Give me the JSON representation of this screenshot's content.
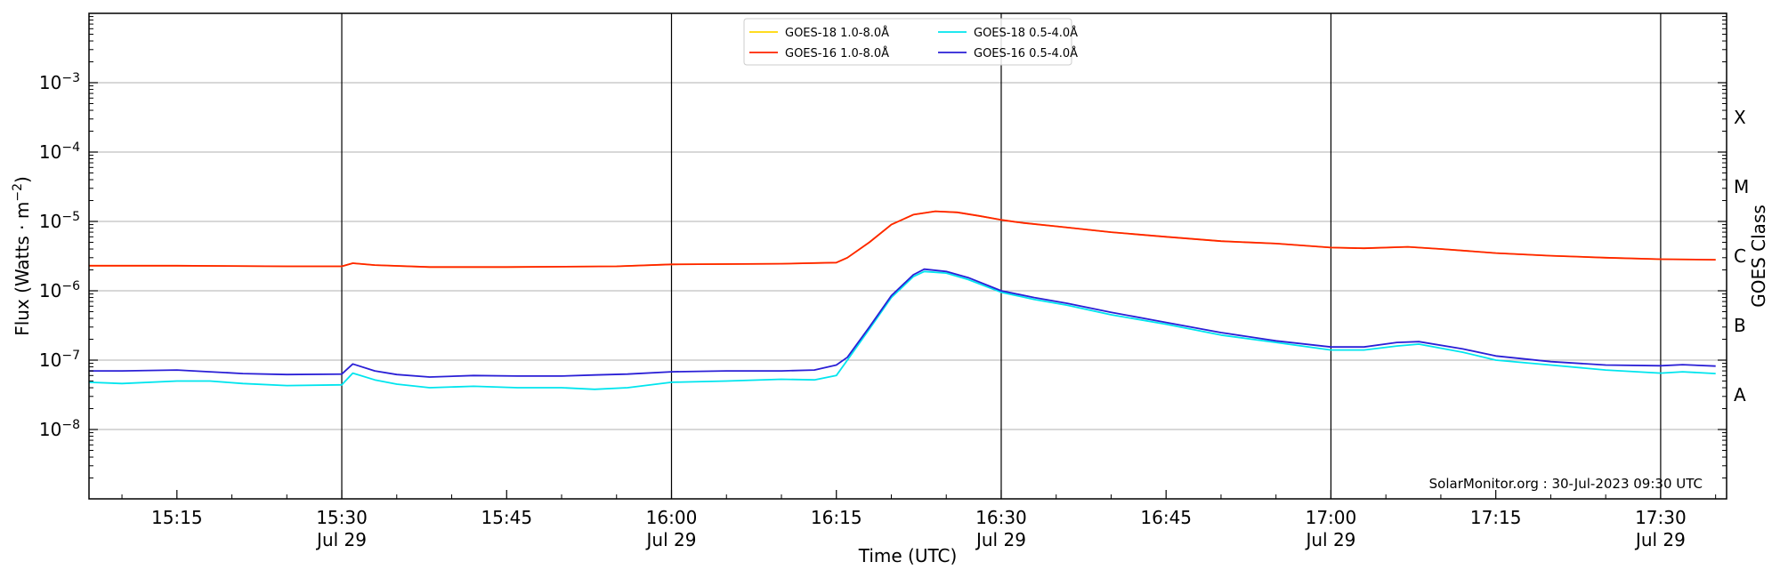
{
  "chart_data": {
    "type": "line",
    "title": "",
    "xlabel": "Time (UTC)",
    "ylabel_prefix": "Flux (Watts · m",
    "ylabel_sup": "−2",
    "ylabel_suffix": ")",
    "y2label": "GOES Class",
    "yscale": "log",
    "xlim": [
      "15:07",
      "17:36"
    ],
    "ylim": [
      1e-09,
      0.01
    ],
    "grid": "horizontal",
    "legend_position": "top-center",
    "watermark": "SolarMonitor.org : 30-Jul-2023 09:30 UTC",
    "y_ticks": [
      {
        "exp": "−8",
        "value": 1e-08
      },
      {
        "exp": "−7",
        "value": 1e-07
      },
      {
        "exp": "−6",
        "value": 1e-06
      },
      {
        "exp": "−5",
        "value": 1e-05
      },
      {
        "exp": "−4",
        "value": 0.0001
      },
      {
        "exp": "−3",
        "value": 0.001
      }
    ],
    "x_ticks": [
      {
        "time": "15:15",
        "label": "15:15",
        "date": ""
      },
      {
        "time": "15:30",
        "label": "15:30",
        "date": "Jul 29"
      },
      {
        "time": "15:45",
        "label": "15:45",
        "date": ""
      },
      {
        "time": "16:00",
        "label": "16:00",
        "date": "Jul 29"
      },
      {
        "time": "16:15",
        "label": "16:15",
        "date": ""
      },
      {
        "time": "16:30",
        "label": "16:30",
        "date": "Jul 29"
      },
      {
        "time": "16:45",
        "label": "16:45",
        "date": ""
      },
      {
        "time": "17:00",
        "label": "17:00",
        "date": "Jul 29"
      },
      {
        "time": "17:15",
        "label": "17:15",
        "date": ""
      },
      {
        "time": "17:30",
        "label": "17:30",
        "date": "Jul 29"
      }
    ],
    "day_markers": [
      "15:30",
      "16:00",
      "16:30",
      "17:00",
      "17:30"
    ],
    "goes_classes": [
      {
        "label": "A",
        "value": 1e-08
      },
      {
        "label": "B",
        "value": 1e-07
      },
      {
        "label": "C",
        "value": 1e-06
      },
      {
        "label": "M",
        "value": 1e-05
      },
      {
        "label": "X",
        "value": 0.0001
      }
    ],
    "series": [
      {
        "name": "GOES-18 1.0-8.0Å",
        "color": "#ffd700",
        "times": [
          "15:07",
          "15:15",
          "15:25",
          "15:30",
          "15:31",
          "15:33",
          "15:38",
          "15:45",
          "15:55",
          "16:00",
          "16:10",
          "16:15",
          "16:16",
          "16:18",
          "16:20",
          "16:22",
          "16:24",
          "16:26",
          "16:28",
          "16:30",
          "16:32",
          "16:35",
          "16:40",
          "16:45",
          "16:50",
          "16:55",
          "17:00",
          "17:03",
          "17:07",
          "17:10",
          "17:15",
          "17:20",
          "17:25",
          "17:30",
          "17:35"
        ],
        "values": [
          2.3e-06,
          2.3e-06,
          2.25e-06,
          2.25e-06,
          2.5e-06,
          2.35e-06,
          2.2e-06,
          2.2e-06,
          2.25e-06,
          2.4e-06,
          2.45e-06,
          2.55e-06,
          3e-06,
          5e-06,
          9e-06,
          1.25e-05,
          1.4e-05,
          1.35e-05,
          1.2e-05,
          1.05e-05,
          9.5e-06,
          8.5e-06,
          7e-06,
          6e-06,
          5.2e-06,
          4.8e-06,
          4.2e-06,
          4.1e-06,
          4.3e-06,
          4e-06,
          3.5e-06,
          3.2e-06,
          3e-06,
          2.85e-06,
          2.8e-06
        ]
      },
      {
        "name": "GOES-16 1.0-8.0Å",
        "color": "#ff2200",
        "times": [
          "15:07",
          "15:15",
          "15:25",
          "15:30",
          "15:31",
          "15:33",
          "15:38",
          "15:45",
          "15:55",
          "16:00",
          "16:10",
          "16:15",
          "16:16",
          "16:18",
          "16:20",
          "16:22",
          "16:24",
          "16:26",
          "16:28",
          "16:30",
          "16:32",
          "16:35",
          "16:40",
          "16:45",
          "16:50",
          "16:55",
          "17:00",
          "17:03",
          "17:07",
          "17:10",
          "17:15",
          "17:20",
          "17:25",
          "17:30",
          "17:35"
        ],
        "values": [
          2.3e-06,
          2.3e-06,
          2.25e-06,
          2.25e-06,
          2.5e-06,
          2.35e-06,
          2.2e-06,
          2.2e-06,
          2.25e-06,
          2.4e-06,
          2.45e-06,
          2.55e-06,
          3e-06,
          5e-06,
          9e-06,
          1.25e-05,
          1.4e-05,
          1.35e-05,
          1.2e-05,
          1.05e-05,
          9.5e-06,
          8.5e-06,
          7e-06,
          6e-06,
          5.2e-06,
          4.8e-06,
          4.2e-06,
          4.1e-06,
          4.3e-06,
          4e-06,
          3.5e-06,
          3.2e-06,
          3e-06,
          2.85e-06,
          2.8e-06
        ]
      },
      {
        "name": "GOES-18 0.5-4.0Å",
        "color": "#00e5ee",
        "times": [
          "15:07",
          "15:10",
          "15:15",
          "15:18",
          "15:21",
          "15:25",
          "15:30",
          "15:31",
          "15:33",
          "15:35",
          "15:38",
          "15:42",
          "15:46",
          "15:50",
          "15:53",
          "15:56",
          "16:00",
          "16:05",
          "16:10",
          "16:13",
          "16:15",
          "16:16",
          "16:18",
          "16:20",
          "16:22",
          "16:23",
          "16:25",
          "16:27",
          "16:30",
          "16:33",
          "16:36",
          "16:40",
          "16:45",
          "16:50",
          "16:55",
          "17:00",
          "17:03",
          "17:06",
          "17:08",
          "17:12",
          "17:15",
          "17:20",
          "17:25",
          "17:30",
          "17:32",
          "17:35"
        ],
        "values": [
          4.8e-08,
          4.6e-08,
          5e-08,
          5e-08,
          4.6e-08,
          4.3e-08,
          4.4e-08,
          6.5e-08,
          5.2e-08,
          4.5e-08,
          4e-08,
          4.2e-08,
          4e-08,
          4e-08,
          3.8e-08,
          4e-08,
          4.8e-08,
          5e-08,
          5.3e-08,
          5.2e-08,
          6e-08,
          1e-07,
          2.8e-07,
          8e-07,
          1.6e-06,
          1.9e-06,
          1.8e-06,
          1.45e-06,
          9.5e-07,
          7.5e-07,
          6.2e-07,
          4.5e-07,
          3.3e-07,
          2.3e-07,
          1.8e-07,
          1.4e-07,
          1.4e-07,
          1.6e-07,
          1.7e-07,
          1.3e-07,
          1e-07,
          8.5e-08,
          7.2e-08,
          6.5e-08,
          6.8e-08,
          6.4e-08
        ]
      },
      {
        "name": "GOES-16 0.5-4.0Å",
        "color": "#2a1fd6",
        "times": [
          "15:07",
          "15:10",
          "15:15",
          "15:18",
          "15:21",
          "15:25",
          "15:30",
          "15:31",
          "15:33",
          "15:35",
          "15:38",
          "15:42",
          "15:46",
          "15:50",
          "15:53",
          "15:56",
          "16:00",
          "16:05",
          "16:10",
          "16:13",
          "16:15",
          "16:16",
          "16:18",
          "16:20",
          "16:22",
          "16:23",
          "16:25",
          "16:27",
          "16:30",
          "16:33",
          "16:36",
          "16:40",
          "16:45",
          "16:50",
          "16:55",
          "17:00",
          "17:03",
          "17:06",
          "17:08",
          "17:12",
          "17:15",
          "17:20",
          "17:25",
          "17:30",
          "17:32",
          "17:35"
        ],
        "values": [
          7e-08,
          7e-08,
          7.2e-08,
          6.8e-08,
          6.4e-08,
          6.2e-08,
          6.3e-08,
          8.8e-08,
          7e-08,
          6.2e-08,
          5.7e-08,
          6e-08,
          5.9e-08,
          5.9e-08,
          6.1e-08,
          6.3e-08,
          6.8e-08,
          7e-08,
          7e-08,
          7.2e-08,
          8.5e-08,
          1.1e-07,
          3e-07,
          8.5e-07,
          1.7e-06,
          2.05e-06,
          1.9e-06,
          1.55e-06,
          1e-06,
          8e-07,
          6.6e-07,
          4.9e-07,
          3.5e-07,
          2.5e-07,
          1.9e-07,
          1.55e-07,
          1.55e-07,
          1.8e-07,
          1.85e-07,
          1.45e-07,
          1.15e-07,
          9.5e-08,
          8.5e-08,
          8.3e-08,
          8.6e-08,
          8.2e-08
        ]
      }
    ]
  }
}
